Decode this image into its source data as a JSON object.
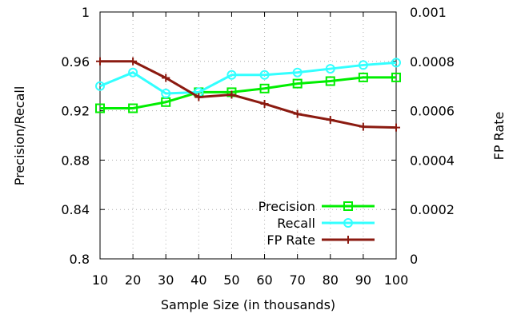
{
  "chart_data": {
    "type": "line",
    "title": "",
    "xlabel": "Sample Size (in thousands)",
    "ylabel": "Precision/Recall",
    "y2label": "FP Rate",
    "x": [
      10,
      20,
      30,
      40,
      50,
      60,
      70,
      80,
      90,
      100
    ],
    "xlim": [
      10,
      100
    ],
    "ylim": [
      0.8,
      1.0
    ],
    "y2lim": [
      0,
      0.001
    ],
    "xticks": [
      "10",
      "20",
      "30",
      "40",
      "50",
      "60",
      "70",
      "80",
      "90",
      "100"
    ],
    "yticks": [
      "0.8",
      "0.84",
      "0.88",
      "0.92",
      "0.96",
      "1"
    ],
    "y2ticks": [
      "0",
      "0.0002",
      "0.0004",
      "0.0006",
      "0.0008",
      "0.001"
    ],
    "grid": true,
    "legend_position": "bottom-right",
    "series": [
      {
        "name": "Precision",
        "axis": "left",
        "marker": "square",
        "color": "#00ee00",
        "values": [
          0.922,
          0.922,
          0.927,
          0.935,
          0.935,
          0.938,
          0.942,
          0.944,
          0.947,
          0.947
        ]
      },
      {
        "name": "Recall",
        "axis": "left",
        "marker": "circle",
        "color": "#33ffff",
        "values": [
          0.94,
          0.951,
          0.934,
          0.935,
          0.949,
          0.949,
          0.951,
          0.954,
          0.957,
          0.959
        ]
      },
      {
        "name": "FP Rate",
        "axis": "right",
        "marker": "plus",
        "color": "#8b1a10",
        "values": [
          0.0008,
          0.0008,
          0.000733,
          0.000655,
          0.000665,
          0.000628,
          0.000587,
          0.000563,
          0.000535,
          0.000532
        ]
      }
    ]
  }
}
